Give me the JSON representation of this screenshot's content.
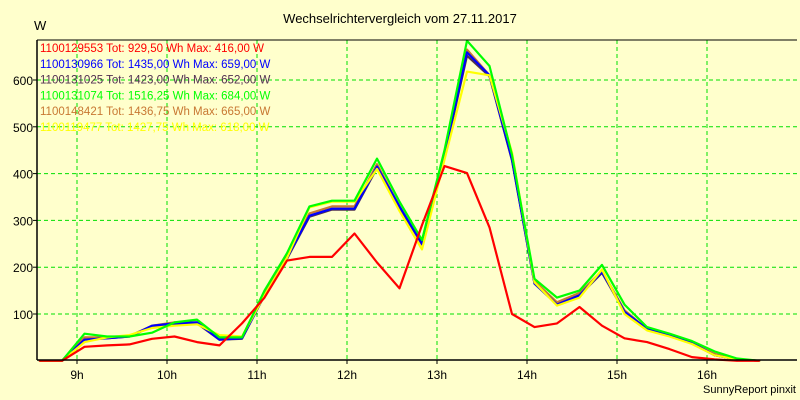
{
  "chart_data": {
    "type": "line",
    "title": "Wechselrichtervergleich vom 27.11.2017",
    "ylabel": "W",
    "xlabel": "",
    "footer": "SunnyReport pinxit",
    "ylim": [
      0,
      680
    ],
    "xlim_minutes": [
      515,
      1020
    ],
    "grid": true,
    "legend_placement": "top-left",
    "y_ticks": [
      {
        "v": 100,
        "label": "100"
      },
      {
        "v": 200,
        "label": "200"
      },
      {
        "v": 300,
        "label": "300"
      },
      {
        "v": 400,
        "label": "400"
      },
      {
        "v": 500,
        "label": "500"
      },
      {
        "v": 600,
        "label": "600"
      }
    ],
    "x_ticks": [
      {
        "m": 540,
        "label": "9h"
      },
      {
        "m": 600,
        "label": "10h"
      },
      {
        "m": 660,
        "label": "11h"
      },
      {
        "m": 720,
        "label": "12h"
      },
      {
        "m": 780,
        "label": "13h"
      },
      {
        "m": 840,
        "label": "14h"
      },
      {
        "m": 900,
        "label": "15h"
      },
      {
        "m": 960,
        "label": "16h"
      }
    ],
    "x": [
      "8:35",
      "8:50",
      "9:05",
      "9:20",
      "9:35",
      "9:50",
      "10:05",
      "10:20",
      "10:35",
      "10:50",
      "11:05",
      "11:20",
      "11:35",
      "11:50",
      "12:05",
      "12:20",
      "12:35",
      "12:50",
      "13:05",
      "13:20",
      "13:35",
      "13:50",
      "14:05",
      "14:20",
      "14:35",
      "14:50",
      "15:05",
      "15:20",
      "15:35",
      "15:50",
      "16:05",
      "16:20",
      "16:35"
    ],
    "series": [
      {
        "name": "1100148421",
        "legend": "1100148421 Tot: 1436,75 Wh Max: 665,00 W",
        "color": "#c87832",
        "values": [
          0,
          0,
          50,
          50,
          53,
          75,
          82,
          82,
          48,
          50,
          145,
          225,
          315,
          330,
          330,
          420,
          330,
          248,
          445,
          665,
          610,
          430,
          170,
          125,
          145,
          192,
          108,
          68,
          55,
          38,
          15,
          3,
          0
        ]
      },
      {
        "name": "1100131025",
        "legend": "1100131025 Tot: 1423,00 Wh Max: 652,00 W",
        "color": "#503050",
        "values": [
          0,
          0,
          45,
          48,
          52,
          73,
          78,
          80,
          45,
          47,
          140,
          218,
          308,
          323,
          323,
          412,
          328,
          250,
          438,
          652,
          608,
          428,
          165,
          120,
          140,
          188,
          104,
          67,
          54,
          37,
          12,
          3,
          0
        ]
      },
      {
        "name": "1100130966",
        "legend": "1100130966 Tot: 1435,00 Wh Max: 659,00 W",
        "color": "#0000ff",
        "values": [
          0,
          0,
          45,
          48,
          52,
          75,
          80,
          82,
          45,
          48,
          140,
          220,
          310,
          325,
          325,
          415,
          330,
          250,
          440,
          659,
          610,
          430,
          165,
          120,
          140,
          190,
          105,
          68,
          55,
          38,
          12,
          3,
          0
        ]
      },
      {
        "name": "1100119477",
        "legend": "1100119477 Tot: 1427,75 Wh Max: 618,00 W",
        "color": "#ffff00",
        "values": [
          0,
          0,
          40,
          50,
          55,
          70,
          75,
          78,
          55,
          52,
          140,
          220,
          328,
          340,
          340,
          410,
          320,
          238,
          430,
          618,
          610,
          445,
          168,
          118,
          135,
          195,
          100,
          65,
          52,
          36,
          12,
          3,
          0
        ]
      },
      {
        "name": "1100131074",
        "legend": "1100131074 Tot: 1516,25 Wh Max: 684,00 W",
        "color": "#00ff00",
        "values": [
          0,
          0,
          58,
          52,
          52,
          60,
          82,
          88,
          50,
          50,
          150,
          230,
          330,
          342,
          342,
          432,
          340,
          258,
          450,
          684,
          630,
          440,
          175,
          135,
          150,
          205,
          120,
          72,
          58,
          42,
          20,
          5,
          0
        ]
      },
      {
        "name": "1100129553",
        "legend": "1100129553 Tot: 929,50 Wh Max: 416,00 W",
        "color": "#ff0000",
        "values": [
          0,
          0,
          30,
          33,
          35,
          47,
          52,
          40,
          33,
          80,
          135,
          214,
          222,
          222,
          272,
          210,
          155,
          290,
          416,
          401,
          285,
          100,
          72,
          80,
          115,
          75,
          48,
          40,
          25,
          8,
          3,
          0,
          0
        ]
      }
    ],
    "legend_order": [
      "1100129553",
      "1100130966",
      "1100131025",
      "1100131074",
      "1100148421",
      "1100119477"
    ]
  }
}
